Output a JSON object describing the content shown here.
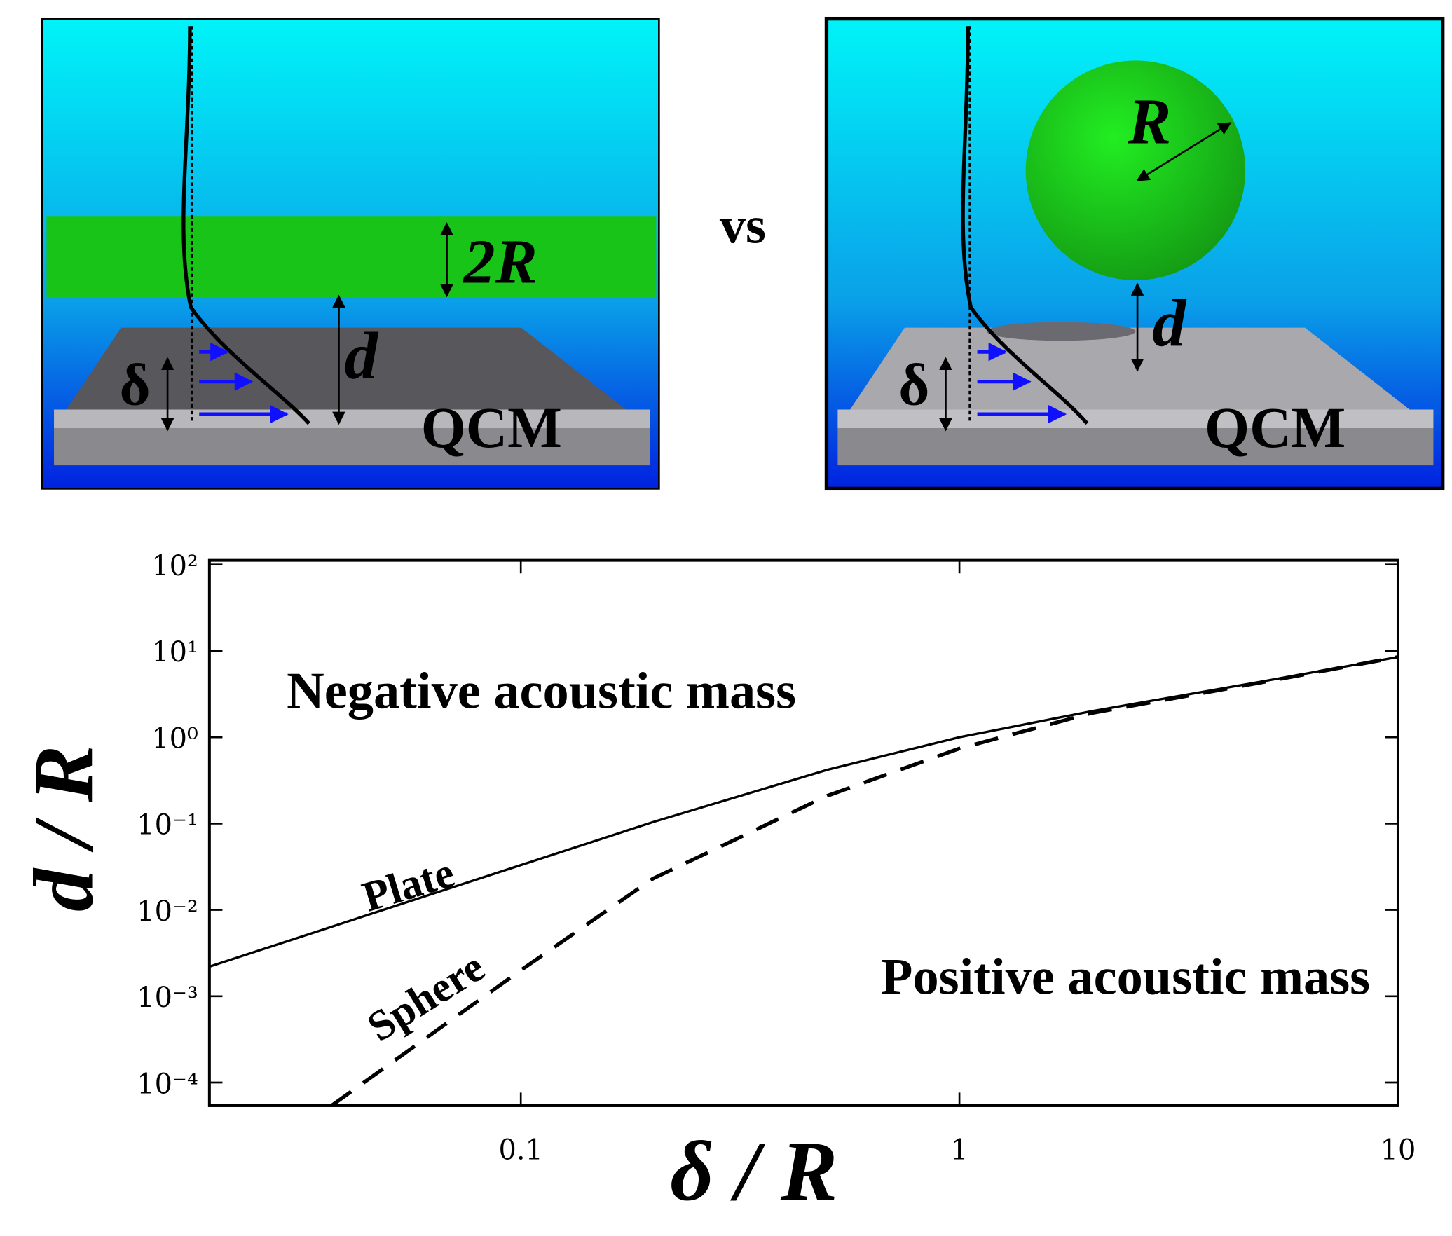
{
  "diagram": {
    "left": {
      "thickness": "2R",
      "distance": "d",
      "depth": "δ",
      "sensor": "QCM"
    },
    "separator": "vs",
    "right": {
      "radius": "R",
      "distance": "d",
      "depth": "δ",
      "sensor": "QCM"
    }
  },
  "chart_data": {
    "type": "line",
    "xlabel": "δ / R",
    "ylabel": "d / R",
    "xscale": "log",
    "yscale": "log",
    "xlim": [
      0.0195,
      10
    ],
    "ylim": [
      5.4e-05,
      112
    ],
    "xticks": [
      0.1,
      1,
      10
    ],
    "yticks": [
      {
        "value": 100,
        "label": "10²"
      },
      {
        "value": 10,
        "label": "10¹"
      },
      {
        "value": 1,
        "label": "10⁰"
      },
      {
        "value": 0.1,
        "label": "10⁻¹"
      },
      {
        "value": 0.01,
        "label": "10⁻²"
      },
      {
        "value": 0.001,
        "label": "10⁻³"
      },
      {
        "value": 0.0001,
        "label": "10⁻⁴"
      }
    ],
    "annotations": [
      "Negative acoustic mass",
      "Positive acoustic mass"
    ],
    "series": [
      {
        "name": "Plate",
        "color": "#000000",
        "linestyle": "solid",
        "x": [
          0.0195,
          0.05,
          0.1,
          0.2,
          0.5,
          1,
          2,
          5,
          10
        ],
        "values": [
          0.0022,
          0.0105,
          0.033,
          0.104,
          0.42,
          1.0,
          2.0,
          4.5,
          8.5
        ]
      },
      {
        "name": "Sphere",
        "color": "#000000",
        "linestyle": "dashed",
        "x": [
          0.037,
          0.1,
          0.2,
          0.5,
          1,
          2,
          5,
          10
        ],
        "values": [
          5.4e-05,
          0.002,
          0.023,
          0.21,
          0.74,
          1.9,
          4.4,
          8.5
        ]
      }
    ]
  }
}
